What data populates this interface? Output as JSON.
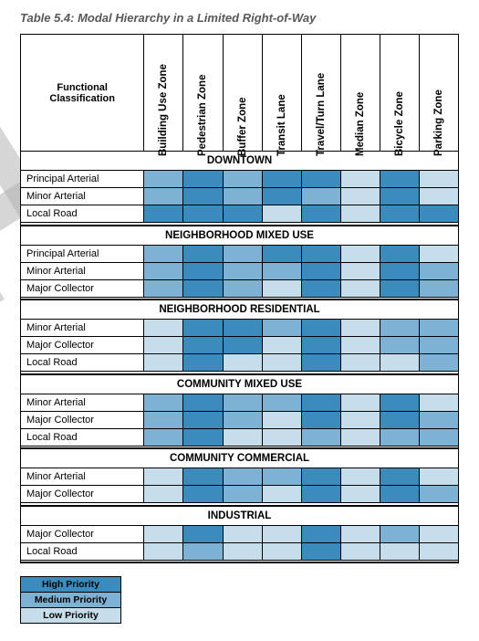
{
  "title": "Table 5.4: Modal Hierarchy in a Limited Right-of-Way",
  "header_label": "Functional\nClassification",
  "columns": [
    "Building Use Zone",
    "Pedestrian Zone",
    "Buffer Zone",
    "Transit Lane",
    "Travel/Turn Lane",
    "Median Zone",
    "Bicycle Zone",
    "Parking Zone"
  ],
  "priority_colors": {
    "H": "#3b8bbd",
    "M": "#7db2d5",
    "L": "#c6ddec"
  },
  "legend": [
    {
      "label": "High Priority",
      "p": "H"
    },
    {
      "label": "Medium Priority",
      "p": "M"
    },
    {
      "label": "Low Priority",
      "p": "L"
    }
  ],
  "sections": [
    {
      "name": "DOWNTOWN",
      "rows": [
        {
          "label": "Principal Arterial",
          "cells": [
            "M",
            "H",
            "M",
            "H",
            "H",
            "L",
            "H",
            "L"
          ]
        },
        {
          "label": "Minor Arterial",
          "cells": [
            "M",
            "H",
            "M",
            "H",
            "M",
            "L",
            "H",
            "L"
          ]
        },
        {
          "label": "Local Road",
          "cells": [
            "H",
            "H",
            "H",
            "L",
            "H",
            "L",
            "H",
            "H"
          ]
        }
      ]
    },
    {
      "name": "NEIGHBORHOOD MIXED USE",
      "rows": [
        {
          "label": "Principal Arterial",
          "cells": [
            "M",
            "H",
            "M",
            "H",
            "H",
            "L",
            "H",
            "L"
          ]
        },
        {
          "label": "Minor Arterial",
          "cells": [
            "M",
            "H",
            "M",
            "M",
            "H",
            "L",
            "H",
            "M"
          ]
        },
        {
          "label": "Major Collector",
          "cells": [
            "M",
            "H",
            "M",
            "L",
            "H",
            "L",
            "H",
            "M"
          ]
        }
      ]
    },
    {
      "name": "NEIGHBORHOOD RESIDENTIAL",
      "rows": [
        {
          "label": "Minor Arterial",
          "cells": [
            "L",
            "H",
            "H",
            "M",
            "H",
            "L",
            "M",
            "M"
          ]
        },
        {
          "label": "Major Collector",
          "cells": [
            "L",
            "H",
            "H",
            "L",
            "H",
            "L",
            "M",
            "M"
          ]
        },
        {
          "label": "Local Road",
          "cells": [
            "L",
            "H",
            "L",
            "L",
            "H",
            "L",
            "L",
            "M"
          ]
        }
      ]
    },
    {
      "name": "COMMUNITY MIXED USE",
      "rows": [
        {
          "label": "Minor Arterial",
          "cells": [
            "M",
            "H",
            "M",
            "M",
            "H",
            "L",
            "H",
            "L"
          ]
        },
        {
          "label": "Major Collector",
          "cells": [
            "M",
            "H",
            "M",
            "L",
            "H",
            "L",
            "H",
            "M"
          ]
        },
        {
          "label": "Local Road",
          "cells": [
            "M",
            "H",
            "L",
            "L",
            "M",
            "L",
            "M",
            "M"
          ]
        }
      ]
    },
    {
      "name": "COMMUNITY COMMERCIAL",
      "rows": [
        {
          "label": "Minor Arterial",
          "cells": [
            "L",
            "H",
            "M",
            "M",
            "H",
            "L",
            "H",
            "L"
          ]
        },
        {
          "label": "Major Collector",
          "cells": [
            "L",
            "H",
            "M",
            "L",
            "H",
            "L",
            "H",
            "M"
          ]
        }
      ]
    },
    {
      "name": "INDUSTRIAL",
      "rows": [
        {
          "label": "Major Collector",
          "cells": [
            "L",
            "H",
            "L",
            "L",
            "H",
            "L",
            "M",
            "L"
          ]
        },
        {
          "label": "Local Road",
          "cells": [
            "L",
            "M",
            "L",
            "L",
            "H",
            "L",
            "L",
            "L"
          ]
        }
      ]
    }
  ]
}
